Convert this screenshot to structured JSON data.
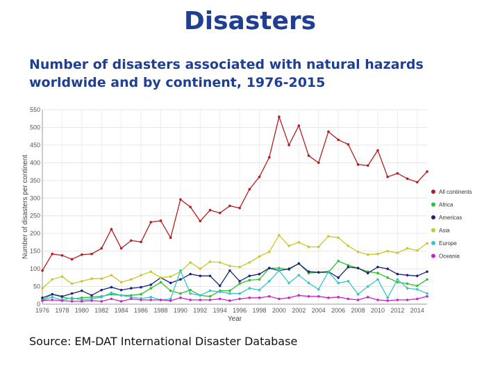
{
  "header": {
    "title": "Disasters",
    "subtitle": "Number of disasters associated with natural hazards worldwide and by continent, 1976-2015",
    "source": "Source: EM-DAT International Disaster Database"
  },
  "chart_data": {
    "type": "line",
    "xlabel": "Year",
    "ylabel": "Number of disasters per continent",
    "ylim": [
      0,
      550
    ],
    "yticks": [
      0,
      50,
      100,
      150,
      200,
      250,
      300,
      350,
      400,
      450,
      500,
      550
    ],
    "xlim": [
      1976,
      2015
    ],
    "xticks": [
      1976,
      1978,
      1980,
      1982,
      1984,
      1986,
      1988,
      1990,
      1992,
      1994,
      1996,
      1998,
      2000,
      2002,
      2004,
      2006,
      2008,
      2010,
      2012,
      2014
    ],
    "grid": true,
    "legend_position": "right",
    "x": [
      1976,
      1977,
      1978,
      1979,
      1980,
      1981,
      1982,
      1983,
      1984,
      1985,
      1986,
      1987,
      1988,
      1989,
      1990,
      1991,
      1992,
      1993,
      1994,
      1995,
      1996,
      1997,
      1998,
      1999,
      2000,
      2001,
      2002,
      2003,
      2004,
      2005,
      2006,
      2007,
      2008,
      2009,
      2010,
      2011,
      2012,
      2013,
      2014,
      2015
    ],
    "series": [
      {
        "name": "All continents",
        "color": "#b71c1c",
        "values": [
          95,
          142,
          138,
          127,
          140,
          142,
          158,
          212,
          158,
          180,
          176,
          232,
          236,
          188,
          296,
          275,
          235,
          266,
          258,
          278,
          272,
          325,
          360,
          415,
          530,
          450,
          505,
          420,
          400,
          488,
          465,
          452,
          395,
          392,
          435,
          360,
          370,
          355,
          345,
          375
        ]
      },
      {
        "name": "Africa",
        "color": "#2ec02e",
        "values": [
          12,
          28,
          20,
          15,
          18,
          20,
          22,
          28,
          25,
          25,
          28,
          45,
          62,
          38,
          30,
          40,
          25,
          22,
          38,
          38,
          58,
          68,
          70,
          102,
          102,
          98,
          115,
          88,
          90,
          90,
          122,
          110,
          102,
          92,
          88,
          75,
          62,
          58,
          52,
          70
        ]
      },
      {
        "name": "Americas",
        "color": "#1a237e",
        "values": [
          18,
          28,
          22,
          30,
          38,
          25,
          40,
          48,
          40,
          45,
          48,
          55,
          75,
          60,
          70,
          85,
          80,
          80,
          52,
          95,
          65,
          80,
          85,
          102,
          95,
          100,
          115,
          92,
          90,
          92,
          75,
          105,
          102,
          88,
          105,
          100,
          85,
          82,
          80,
          92
        ]
      },
      {
        "name": "Asia",
        "color": "#c8c82a",
        "values": [
          45,
          70,
          78,
          58,
          65,
          72,
          72,
          82,
          62,
          70,
          82,
          92,
          75,
          78,
          92,
          118,
          100,
          120,
          118,
          108,
          105,
          118,
          135,
          148,
          195,
          165,
          175,
          162,
          162,
          192,
          188,
          165,
          148,
          140,
          142,
          150,
          145,
          158,
          152,
          172
        ]
      },
      {
        "name": "Europe",
        "color": "#33c4cc",
        "values": [
          10,
          20,
          12,
          18,
          12,
          15,
          20,
          32,
          25,
          20,
          16,
          20,
          12,
          15,
          95,
          30,
          25,
          38,
          35,
          30,
          30,
          45,
          40,
          65,
          95,
          60,
          82,
          60,
          42,
          92,
          60,
          65,
          28,
          50,
          70,
          18,
          70,
          45,
          42,
          30
        ]
      },
      {
        "name": "Oceania",
        "color": "#cc22cc",
        "values": [
          10,
          12,
          10,
          8,
          8,
          10,
          8,
          15,
          8,
          15,
          12,
          12,
          12,
          10,
          18,
          12,
          12,
          12,
          15,
          10,
          15,
          18,
          18,
          22,
          15,
          18,
          25,
          22,
          22,
          18,
          20,
          15,
          12,
          20,
          12,
          10,
          12,
          12,
          15,
          22
        ]
      }
    ]
  }
}
